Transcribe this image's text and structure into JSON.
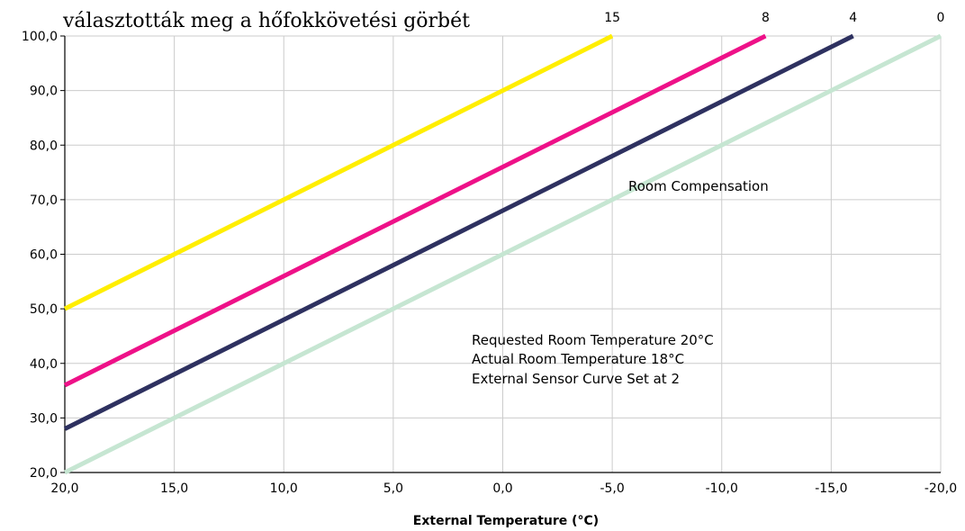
{
  "header_text": "választották meg a hőfokkövetési görbét",
  "chart_data": {
    "type": "line",
    "title": "",
    "xlabel": "External Temperature (°C)",
    "ylabel": "",
    "x_reversed": true,
    "xlim": [
      20,
      -20
    ],
    "ylim": [
      20,
      100
    ],
    "grid": true,
    "x_ticks": [
      "20,0",
      "15,0",
      "10,0",
      "5,0",
      "0,0",
      "-5,0",
      "-10,0",
      "-15,0",
      "-20,0"
    ],
    "y_ticks": [
      "20,0",
      "30,0",
      "40,0",
      "50,0",
      "60,0",
      "70,0",
      "80,0",
      "90,0",
      "100,0"
    ],
    "series": [
      {
        "name": "15",
        "color": "#ffee00",
        "points": [
          [
            20,
            50
          ],
          [
            -5,
            100
          ]
        ]
      },
      {
        "name": "8",
        "color": "#ee1188",
        "points": [
          [
            20,
            36
          ],
          [
            -12,
            100
          ]
        ]
      },
      {
        "name": "4",
        "color": "#2e3160",
        "points": [
          [
            20,
            28
          ],
          [
            -16,
            100
          ]
        ]
      },
      {
        "name": "0",
        "color": "#c6e6d2",
        "points": [
          [
            20,
            20
          ],
          [
            -20,
            100
          ]
        ]
      }
    ],
    "annotations": {
      "room_compensation": "Room Compensation",
      "lines": [
        "Requested Room Temperature 20°C",
        "Actual Room Temperature 18°C",
        "External Sensor Curve Set at 2"
      ]
    }
  }
}
